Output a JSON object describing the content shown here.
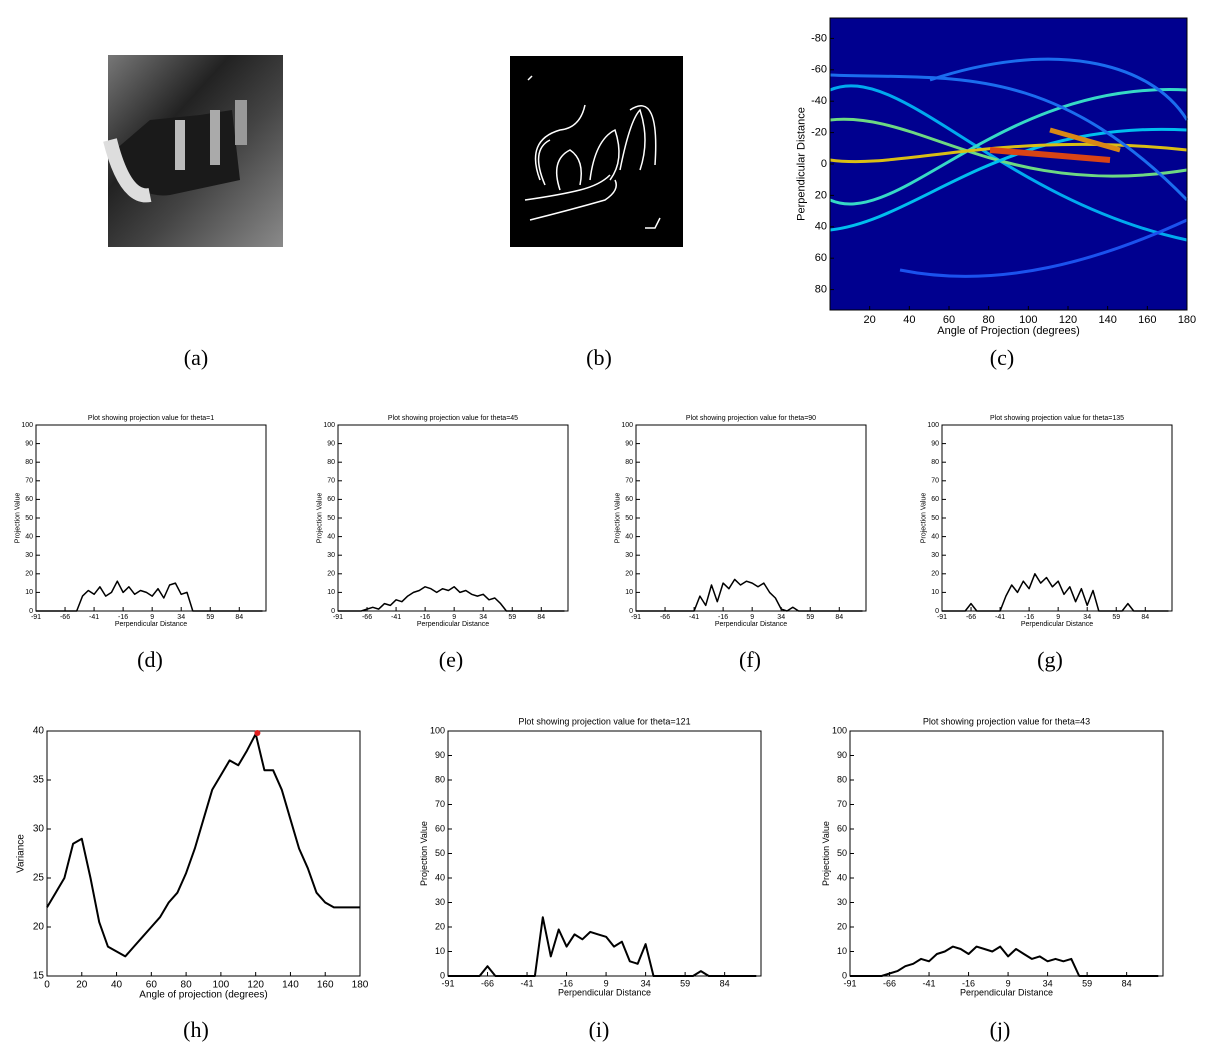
{
  "images": [
    {
      "caption": "(a)"
    },
    {
      "caption": "(b)"
    }
  ],
  "chart_data": [
    {
      "type": "heatmap",
      "caption": "(c)",
      "xlabel": "Angle of Projection (degrees)",
      "ylabel": "Perpendicular Distance",
      "xlim": [
        0,
        180
      ],
      "xticks": [
        20,
        40,
        60,
        80,
        100,
        120,
        140,
        160,
        180
      ],
      "ylim": [
        -93,
        93
      ],
      "yticks": [
        -80,
        -60,
        -40,
        -20,
        0,
        20,
        40,
        60,
        80
      ],
      "y_reversed": true
    },
    {
      "type": "line",
      "caption": "(d)",
      "title": "Plot showing projection value for theta=1",
      "xlabel": "Perpendicular Distance",
      "ylabel": "Projection Value",
      "color": "#000000",
      "xlim": [
        -91,
        107
      ],
      "xticks": [
        -91,
        -66,
        -41,
        -16,
        9,
        34,
        59,
        84
      ],
      "ylim": [
        0,
        100
      ],
      "yticks": [
        0,
        10,
        20,
        30,
        40,
        50,
        60,
        70,
        80,
        90,
        100
      ],
      "x": [
        -91,
        -86,
        -81,
        -76,
        -71,
        -66,
        -61,
        -56,
        -51,
        -46,
        -41,
        -36,
        -31,
        -26,
        -21,
        -16,
        -11,
        -6,
        -1,
        4,
        9,
        14,
        19,
        24,
        29,
        34,
        39,
        44,
        49,
        54,
        59,
        64,
        69,
        74,
        79,
        84,
        89,
        94,
        99,
        104
      ],
      "values": [
        0,
        0,
        0,
        0,
        0,
        0,
        0,
        0,
        8,
        11,
        9,
        13,
        8,
        10,
        16,
        10,
        13,
        9,
        11,
        10,
        8,
        12,
        7,
        14,
        15,
        9,
        10,
        0,
        0,
        0,
        0,
        0,
        0,
        0,
        0,
        0,
        0,
        0,
        0,
        0
      ]
    },
    {
      "type": "line",
      "caption": "(e)",
      "title": "Plot showing projection value for theta=45",
      "xlabel": "Perpendicular Distance",
      "ylabel": "Projection Value",
      "color": "#000000",
      "xlim": [
        -91,
        107
      ],
      "xticks": [
        -91,
        -66,
        -41,
        -16,
        9,
        34,
        59,
        84
      ],
      "ylim": [
        0,
        100
      ],
      "yticks": [
        0,
        10,
        20,
        30,
        40,
        50,
        60,
        70,
        80,
        90,
        100
      ],
      "x": [
        -91,
        -86,
        -81,
        -76,
        -71,
        -66,
        -61,
        -56,
        -51,
        -46,
        -41,
        -36,
        -31,
        -26,
        -21,
        -16,
        -11,
        -6,
        -1,
        4,
        9,
        14,
        19,
        24,
        29,
        34,
        39,
        44,
        49,
        54,
        59,
        64,
        69,
        74,
        79,
        84,
        89,
        94,
        99,
        104
      ],
      "values": [
        0,
        0,
        0,
        0,
        0,
        1,
        2,
        1,
        4,
        3,
        6,
        5,
        8,
        10,
        11,
        13,
        12,
        10,
        12,
        11,
        13,
        10,
        11,
        9,
        8,
        9,
        6,
        7,
        4,
        0,
        0,
        0,
        0,
        0,
        0,
        0,
        0,
        0,
        0,
        0
      ]
    },
    {
      "type": "line",
      "caption": "(f)",
      "title": "Plot showing projection value for theta=90",
      "xlabel": "Perpendicular Distance",
      "ylabel": "Projection Value",
      "color": "#000000",
      "xlim": [
        -91,
        107
      ],
      "xticks": [
        -91,
        -66,
        -41,
        -16,
        9,
        34,
        59,
        84
      ],
      "ylim": [
        0,
        100
      ],
      "yticks": [
        0,
        10,
        20,
        30,
        40,
        50,
        60,
        70,
        80,
        90,
        100
      ],
      "x": [
        -91,
        -86,
        -81,
        -76,
        -71,
        -66,
        -61,
        -56,
        -51,
        -46,
        -41,
        -36,
        -31,
        -26,
        -21,
        -16,
        -11,
        -6,
        -1,
        4,
        9,
        14,
        19,
        24,
        29,
        34,
        39,
        44,
        49,
        54,
        59,
        64,
        69,
        74,
        79,
        84,
        89,
        94,
        99,
        104
      ],
      "values": [
        0,
        0,
        0,
        0,
        0,
        0,
        0,
        0,
        0,
        0,
        0,
        8,
        3,
        14,
        5,
        15,
        12,
        17,
        14,
        16,
        15,
        13,
        15,
        10,
        7,
        1,
        0,
        2,
        0,
        0,
        0,
        0,
        0,
        0,
        0,
        0,
        0,
        0,
        0,
        0
      ]
    },
    {
      "type": "line",
      "caption": "(g)",
      "title": "Plot showing projection value for theta=135",
      "xlabel": "Perpendicular Distance",
      "ylabel": "Projection Value",
      "color": "#000000",
      "xlim": [
        -91,
        107
      ],
      "xticks": [
        -91,
        -66,
        -41,
        -16,
        9,
        34,
        59,
        84
      ],
      "ylim": [
        0,
        100
      ],
      "yticks": [
        0,
        10,
        20,
        30,
        40,
        50,
        60,
        70,
        80,
        90,
        100
      ],
      "x": [
        -91,
        -86,
        -81,
        -76,
        -71,
        -66,
        -61,
        -56,
        -51,
        -46,
        -41,
        -36,
        -31,
        -26,
        -21,
        -16,
        -11,
        -6,
        -1,
        4,
        9,
        14,
        19,
        24,
        29,
        34,
        39,
        44,
        49,
        54,
        59,
        64,
        69,
        74,
        79,
        84,
        89,
        94,
        99,
        104
      ],
      "values": [
        0,
        0,
        0,
        0,
        0,
        4,
        0,
        0,
        0,
        0,
        0,
        8,
        14,
        10,
        16,
        12,
        20,
        15,
        18,
        13,
        16,
        9,
        13,
        5,
        12,
        3,
        11,
        0,
        0,
        0,
        0,
        0,
        4,
        0,
        0,
        0,
        0,
        0,
        0,
        0
      ]
    },
    {
      "type": "line",
      "caption": "(h)",
      "xlabel": "Angle of projection (degrees)",
      "ylabel": "Variance",
      "color": "#000000",
      "xlim": [
        0,
        180
      ],
      "xticks": [
        0,
        20,
        40,
        60,
        80,
        100,
        120,
        140,
        160,
        180
      ],
      "ylim": [
        15,
        40
      ],
      "yticks": [
        15,
        20,
        25,
        30,
        35,
        40
      ],
      "x": [
        0,
        5,
        10,
        15,
        20,
        25,
        30,
        35,
        40,
        45,
        50,
        55,
        60,
        65,
        70,
        75,
        80,
        85,
        90,
        95,
        100,
        105,
        110,
        115,
        120,
        125,
        130,
        135,
        140,
        145,
        150,
        155,
        160,
        165,
        170,
        175,
        180
      ],
      "values": [
        22,
        23.5,
        25,
        28.5,
        29,
        25,
        20.5,
        18,
        17.5,
        17,
        18,
        19,
        20,
        21,
        22.5,
        23.5,
        25.5,
        28,
        31,
        34,
        35.5,
        37,
        36.5,
        38,
        39.7,
        36,
        36,
        34,
        31,
        28,
        26,
        23.5,
        22.5,
        22,
        22,
        22,
        22
      ],
      "marker": {
        "x": 121,
        "y": 39.8,
        "color": "#e02020"
      }
    },
    {
      "type": "line",
      "caption": "(i)",
      "title": "Plot showing projection value for theta=121",
      "xlabel": "Perpendicular Distance",
      "ylabel": "Projection Value",
      "color": "#000000",
      "xlim": [
        -91,
        107
      ],
      "xticks": [
        -91,
        -66,
        -41,
        -16,
        9,
        34,
        59,
        84
      ],
      "ylim": [
        0,
        100
      ],
      "yticks": [
        0,
        10,
        20,
        30,
        40,
        50,
        60,
        70,
        80,
        90,
        100
      ],
      "x": [
        -91,
        -86,
        -81,
        -76,
        -71,
        -66,
        -61,
        -56,
        -51,
        -46,
        -41,
        -36,
        -31,
        -26,
        -21,
        -16,
        -11,
        -6,
        -1,
        4,
        9,
        14,
        19,
        24,
        29,
        34,
        39,
        44,
        49,
        54,
        59,
        64,
        69,
        74,
        79,
        84,
        89,
        94,
        99,
        104
      ],
      "values": [
        0,
        0,
        0,
        0,
        0,
        4,
        0,
        0,
        0,
        0,
        0,
        0,
        24,
        8,
        19,
        12,
        17,
        15,
        18,
        17,
        16,
        12,
        14,
        6,
        5,
        13,
        0,
        0,
        0,
        0,
        0,
        0,
        2,
        0,
        0,
        0,
        0,
        0,
        0,
        0
      ]
    },
    {
      "type": "line",
      "caption": "(j)",
      "title": "Plot showing projection value for theta=43",
      "xlabel": "Perpendicular Distance",
      "ylabel": "Projection Value",
      "color": "#000000",
      "xlim": [
        -91,
        107
      ],
      "xticks": [
        -91,
        -66,
        -41,
        -16,
        9,
        34,
        59,
        84
      ],
      "ylim": [
        0,
        100
      ],
      "yticks": [
        0,
        10,
        20,
        30,
        40,
        50,
        60,
        70,
        80,
        90,
        100
      ],
      "x": [
        -91,
        -86,
        -81,
        -76,
        -71,
        -66,
        -61,
        -56,
        -51,
        -46,
        -41,
        -36,
        -31,
        -26,
        -21,
        -16,
        -11,
        -6,
        -1,
        4,
        9,
        14,
        19,
        24,
        29,
        34,
        39,
        44,
        49,
        54,
        59,
        64,
        69,
        74,
        79,
        84,
        89,
        94,
        99,
        104
      ],
      "values": [
        0,
        0,
        0,
        0,
        0,
        1,
        2,
        4,
        5,
        7,
        6,
        9,
        10,
        12,
        11,
        9,
        12,
        11,
        10,
        12,
        8,
        11,
        9,
        7,
        8,
        6,
        7,
        6,
        7,
        0,
        0,
        0,
        0,
        0,
        0,
        0,
        0,
        0,
        0,
        0
      ]
    }
  ]
}
